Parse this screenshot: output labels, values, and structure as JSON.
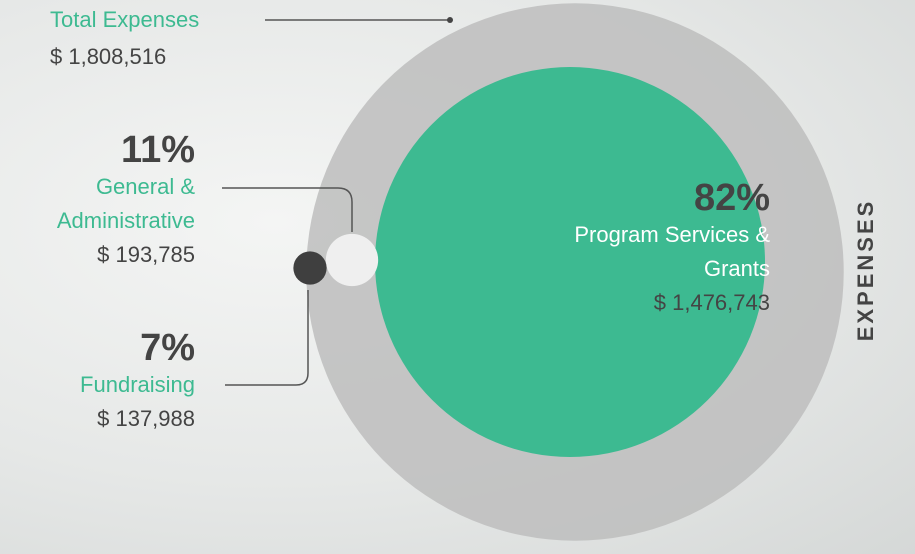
{
  "chart_data": {
    "type": "nested-circles",
    "title": "EXPENSES",
    "total": {
      "name": "Total Expenses",
      "value": 1808516,
      "value_label": "$ 1,808,516",
      "color": "#bdbdbd"
    },
    "series": [
      {
        "name": "Program Services & Grants",
        "color": "#3dba91",
        "values": [
          82,
          1476743
        ],
        "value_labels": [
          "82%",
          "$ 1,476,743"
        ]
      },
      {
        "name": "General & Administrative",
        "color": "#efefef",
        "values": [
          11,
          193785
        ],
        "value_labels": [
          "11%",
          "$ 193,785"
        ]
      },
      {
        "name": "Fundraising",
        "color": "#3f3f3f",
        "values": [
          7,
          137988
        ],
        "value_labels": [
          "7%",
          "$ 137,988"
        ]
      }
    ]
  }
}
